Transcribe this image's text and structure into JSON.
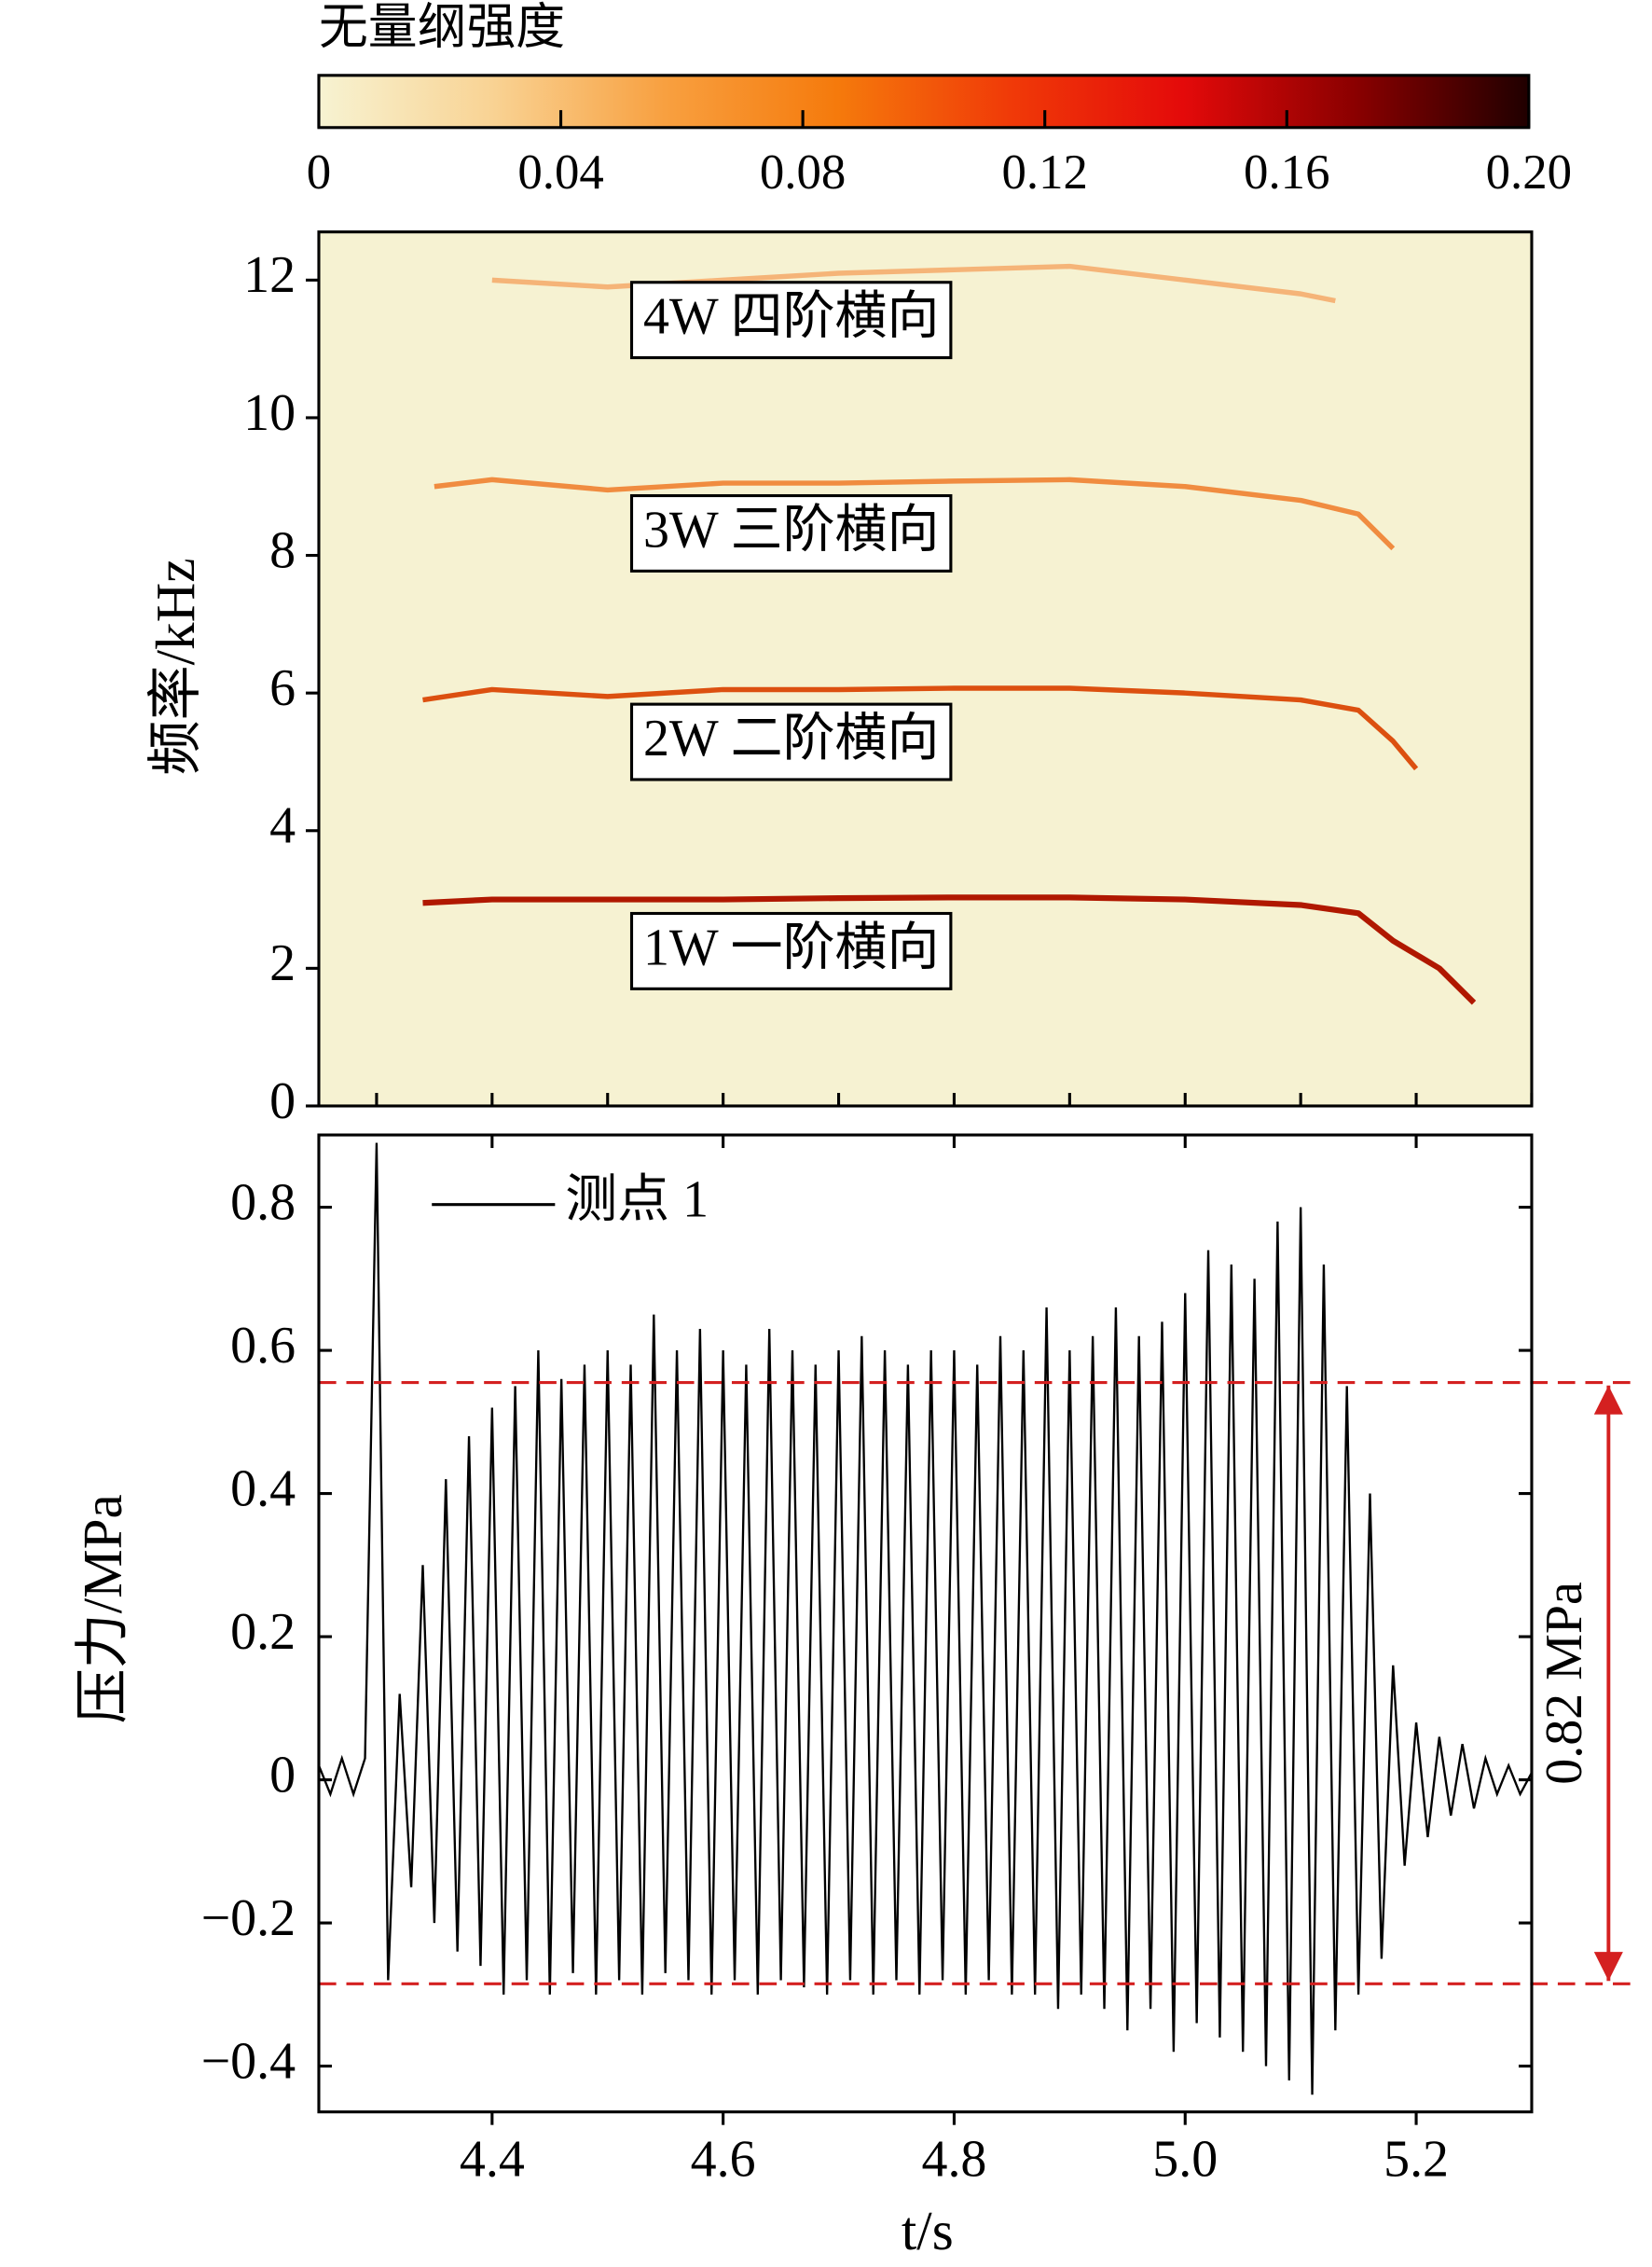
{
  "chart_data": [
    {
      "type": "heatmap",
      "ylabel": "频率/kHz",
      "background": "#f6f2d2",
      "xlim": [
        4.25,
        5.3
      ],
      "xticks": [
        4.3,
        4.4,
        4.5,
        4.6,
        4.7,
        4.8,
        4.9,
        5.0,
        5.1,
        5.2,
        5.3
      ],
      "ylim": [
        0,
        12.7
      ],
      "yticks": [
        0,
        2,
        4,
        6,
        8,
        10,
        12
      ],
      "colorbar": {
        "title": "无量纲强度",
        "lim": [
          0,
          0.2
        ],
        "ticks": [
          0,
          0.04,
          0.08,
          0.12,
          0.16,
          {
            "value": 0.2,
            "label": "0.20"
          }
        ],
        "colormap": [
          "#f7f3d2",
          "#f9d394",
          "#f8a040",
          "#f57a0c",
          "#f03a08",
          "#e40a0a",
          "#8a0000",
          "#200000"
        ]
      },
      "series": [
        {
          "name": "1W 一阶横向",
          "color": "#b01800",
          "x": [
            4.34,
            4.4,
            4.5,
            4.6,
            4.7,
            4.8,
            4.9,
            5.0,
            5.1,
            5.15,
            5.18,
            5.22,
            5.25
          ],
          "values": [
            2.95,
            3.0,
            3.0,
            3.0,
            3.02,
            3.03,
            3.03,
            3.0,
            2.92,
            2.8,
            2.4,
            2.0,
            1.5
          ]
        },
        {
          "name": "2W 二阶横向",
          "color": "#dc5010",
          "x": [
            4.34,
            4.4,
            4.5,
            4.6,
            4.7,
            4.8,
            4.9,
            5.0,
            5.1,
            5.15,
            5.18,
            5.2
          ],
          "values": [
            5.9,
            6.05,
            5.95,
            6.05,
            6.05,
            6.07,
            6.07,
            6.0,
            5.9,
            5.75,
            5.3,
            4.9
          ]
        },
        {
          "name": "3W 三阶横向",
          "color": "#f08c40",
          "x": [
            4.35,
            4.4,
            4.5,
            4.6,
            4.7,
            4.8,
            4.9,
            5.0,
            5.1,
            5.15,
            5.18
          ],
          "values": [
            9.0,
            9.1,
            8.95,
            9.05,
            9.05,
            9.08,
            9.1,
            9.0,
            8.8,
            8.6,
            8.1
          ]
        },
        {
          "name": "4W 四阶横向",
          "color": "#f5b478",
          "x": [
            4.4,
            4.5,
            4.6,
            4.7,
            4.8,
            4.9,
            5.0,
            5.1,
            5.13
          ],
          "values": [
            12.0,
            11.9,
            12.0,
            12.1,
            12.15,
            12.2,
            12.0,
            11.8,
            11.7
          ]
        }
      ]
    },
    {
      "type": "line",
      "xlabel": "t/s",
      "ylabel": "压力/MPa",
      "xlim": [
        4.25,
        5.3
      ],
      "xticks": [
        4.4,
        4.6,
        4.8,
        {
          "value": 5,
          "label": "5.0"
        },
        5.2
      ],
      "ylim": [
        -0.464,
        0.901
      ],
      "yticks": [
        {
          "value": -0.4,
          "label": "−0.4"
        },
        {
          "value": -0.2,
          "label": "−0.2"
        },
        0,
        0.2,
        0.4,
        0.6,
        0.8
      ],
      "legend": "top-left",
      "hlines": [
        0.555,
        -0.285
      ],
      "hline_color": "#d42020",
      "annotation": "0.82 MPa",
      "series": [
        {
          "name": "测点 1",
          "color": "#000000",
          "x": [
            4.25,
            4.26,
            4.27,
            4.28,
            4.29,
            4.3,
            4.31,
            4.32,
            4.33,
            4.34,
            4.35,
            4.36,
            4.37,
            4.38,
            4.39,
            4.4,
            4.41,
            4.42,
            4.43,
            4.44,
            4.45,
            4.46,
            4.47,
            4.48,
            4.49,
            4.5,
            4.51,
            4.52,
            4.53,
            4.54,
            4.55,
            4.56,
            4.57,
            4.58,
            4.59,
            4.6,
            4.61,
            4.62,
            4.63,
            4.64,
            4.65,
            4.66,
            4.67,
            4.68,
            4.69,
            4.7,
            4.71,
            4.72,
            4.73,
            4.74,
            4.75,
            4.76,
            4.77,
            4.78,
            4.79,
            4.8,
            4.81,
            4.82,
            4.83,
            4.84,
            4.85,
            4.86,
            4.87,
            4.88,
            4.89,
            4.9,
            4.91,
            4.92,
            4.93,
            4.94,
            4.95,
            4.96,
            4.97,
            4.98,
            4.99,
            5.0,
            5.01,
            5.02,
            5.03,
            5.04,
            5.05,
            5.06,
            5.07,
            5.08,
            5.09,
            5.1,
            5.11,
            5.12,
            5.13,
            5.14,
            5.15,
            5.16,
            5.17,
            5.18,
            5.19,
            5.2,
            5.21,
            5.22,
            5.23,
            5.24,
            5.25,
            5.26,
            5.27,
            5.28,
            5.29,
            5.3
          ],
          "values": [
            0.02,
            -0.02,
            0.03,
            -0.02,
            0.03,
            0.89,
            -0.28,
            0.12,
            -0.15,
            0.3,
            -0.2,
            0.42,
            -0.24,
            0.48,
            -0.26,
            0.52,
            -0.3,
            0.55,
            -0.28,
            0.6,
            -0.3,
            0.56,
            -0.27,
            0.58,
            -0.3,
            0.6,
            -0.28,
            0.58,
            -0.3,
            0.65,
            -0.27,
            0.6,
            -0.28,
            0.63,
            -0.3,
            0.6,
            -0.28,
            0.58,
            -0.3,
            0.63,
            -0.28,
            0.6,
            -0.29,
            0.58,
            -0.3,
            0.6,
            -0.28,
            0.62,
            -0.3,
            0.6,
            -0.28,
            0.58,
            -0.3,
            0.6,
            -0.28,
            0.6,
            -0.3,
            0.58,
            -0.28,
            0.62,
            -0.3,
            0.6,
            -0.3,
            0.66,
            -0.32,
            0.6,
            -0.3,
            0.62,
            -0.32,
            0.66,
            -0.35,
            0.62,
            -0.32,
            0.64,
            -0.38,
            0.68,
            -0.34,
            0.74,
            -0.36,
            0.72,
            -0.38,
            0.7,
            -0.4,
            0.78,
            -0.42,
            0.8,
            -0.44,
            0.72,
            -0.35,
            0.55,
            -0.3,
            0.4,
            -0.25,
            0.16,
            -0.12,
            0.08,
            -0.08,
            0.06,
            -0.05,
            0.05,
            -0.04,
            0.03,
            -0.02,
            0.02,
            -0.02,
            0.01
          ]
        }
      ]
    }
  ]
}
